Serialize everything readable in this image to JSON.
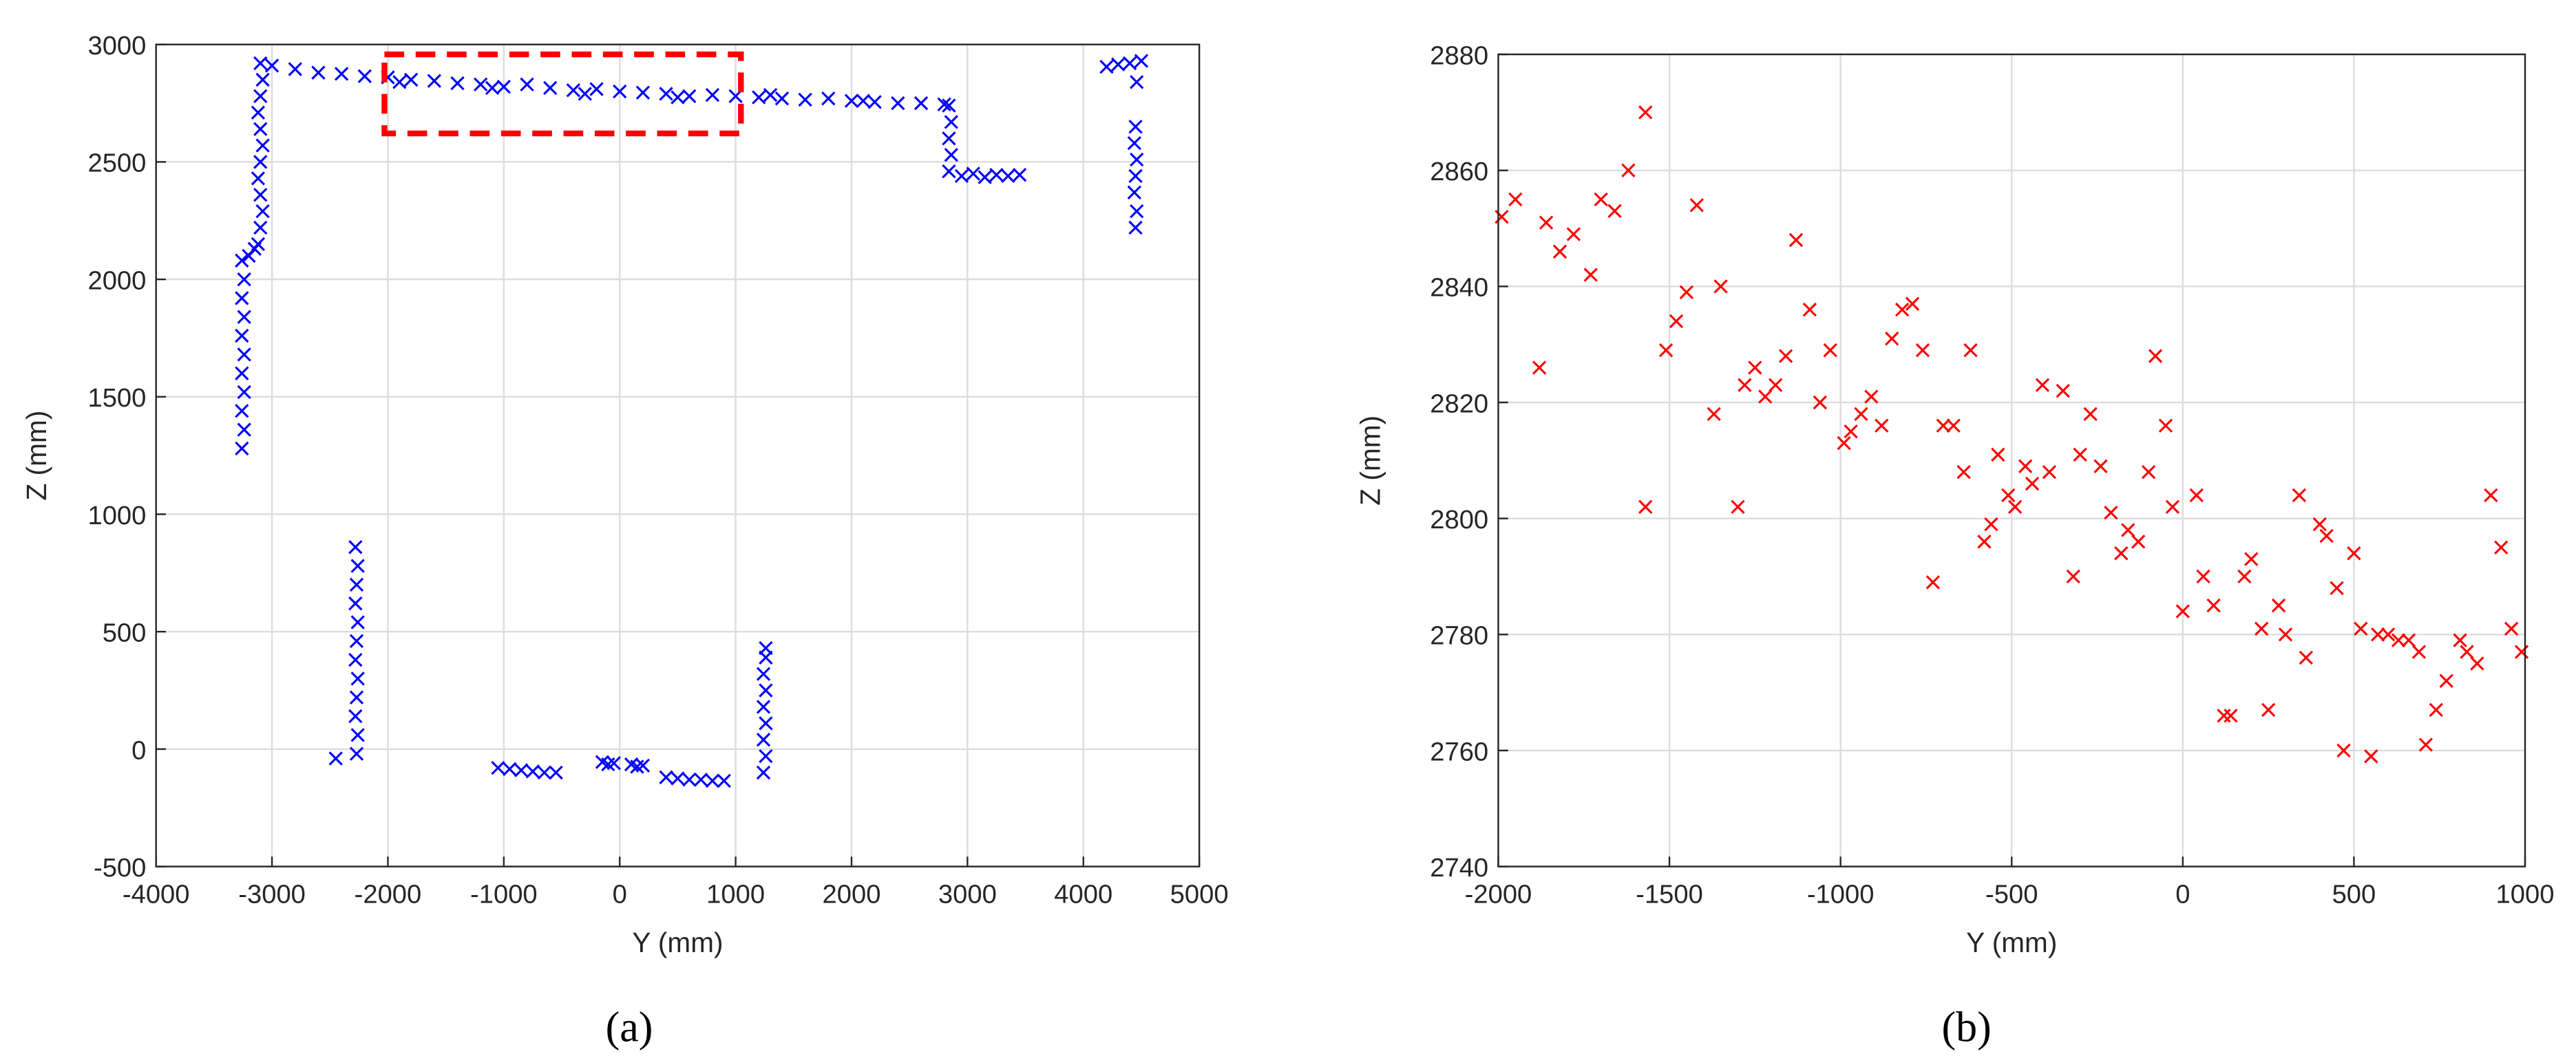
{
  "chart_data": [
    {
      "type": "scatter",
      "caption": "(a)",
      "x_label": "Y (mm)",
      "y_label": "Z (mm)",
      "color": "#0000ff",
      "grid": true,
      "xlim": [
        -4000,
        5000
      ],
      "ylim": [
        -500,
        3000
      ],
      "xticks": [
        -4000,
        -3000,
        -2000,
        -1000,
        0,
        1000,
        2000,
        3000,
        4000,
        5000
      ],
      "yticks": [
        -500,
        0,
        500,
        1000,
        1500,
        2000,
        2500,
        3000
      ],
      "x": [
        -3000,
        -2800,
        -2600,
        -2400,
        -2200,
        -2000,
        -1800,
        -1600,
        -1400,
        -1200,
        -1000,
        -800,
        -600,
        -400,
        -200,
        0,
        200,
        400,
        600,
        800,
        1000,
        1200,
        1400,
        1600,
        1800,
        2000,
        2200,
        2400,
        2600,
        2800,
        -1900,
        -1100,
        -300,
        500,
        1300,
        2100,
        -3120,
        -3100,
        -3080,
        -3100,
        -3120,
        -3100,
        -3080,
        -3100,
        -3120,
        -3100,
        -3080,
        -3100,
        -3260,
        -3240,
        -3260,
        -3240,
        -3260,
        -3240,
        -3260,
        -3240,
        -3260,
        -3240,
        -3260,
        -3200,
        -3150,
        2840,
        2860,
        2840,
        2860,
        2840,
        2950,
        3050,
        3150,
        3250,
        3350,
        3450,
        4200,
        4300,
        4400,
        4500,
        4450,
        4460,
        4440,
        4450,
        4460,
        4440,
        4450,
        4460,
        -2270,
        -2260,
        -2280,
        -2270,
        -2260,
        -2280,
        -2270,
        -2260,
        -2280,
        -2270,
        -2260,
        -2280,
        -2450,
        -1050,
        -950,
        -850,
        -750,
        -650,
        -550,
        -150,
        -100,
        -50,
        100,
        150,
        200,
        400,
        500,
        600,
        700,
        800,
        900,
        1240,
        1260,
        1240,
        1260,
        1240,
        1260,
        1240,
        1260,
        1260
      ],
      "values": [
        2910,
        2895,
        2880,
        2875,
        2865,
        2860,
        2850,
        2845,
        2835,
        2830,
        2820,
        2830,
        2815,
        2805,
        2810,
        2800,
        2795,
        2790,
        2780,
        2785,
        2780,
        2775,
        2770,
        2765,
        2770,
        2760,
        2755,
        2750,
        2750,
        2745,
        2840,
        2815,
        2790,
        2775,
        2785,
        2760,
        2150,
        2220,
        2290,
        2360,
        2430,
        2500,
        2570,
        2640,
        2710,
        2780,
        2850,
        2920,
        1280,
        1360,
        1440,
        1520,
        1600,
        1680,
        1760,
        1840,
        1920,
        2000,
        2080,
        2100,
        2130,
        2460,
        2530,
        2600,
        2670,
        2740,
        2440,
        2450,
        2435,
        2445,
        2440,
        2445,
        2905,
        2915,
        2920,
        2930,
        2220,
        2290,
        2370,
        2440,
        2510,
        2580,
        2650,
        2840,
        -20,
        60,
        140,
        220,
        300,
        380,
        460,
        540,
        620,
        700,
        780,
        860,
        -40,
        -80,
        -85,
        -90,
        -95,
        -100,
        -100,
        -55,
        -65,
        -60,
        -65,
        -75,
        -70,
        -120,
        -125,
        -130,
        -130,
        -135,
        -135,
        -100,
        -30,
        40,
        110,
        180,
        250,
        320,
        390,
        430
      ]
    },
    {
      "type": "scatter",
      "caption": "(b)",
      "x_label": "Y (mm)",
      "y_label": "Z (mm)",
      "color": "#ff0000",
      "grid": true,
      "xlim": [
        -2000,
        1000
      ],
      "ylim": [
        2740,
        2880
      ],
      "xticks": [
        -2000,
        -1500,
        -1000,
        -500,
        0,
        500,
        1000
      ],
      "yticks": [
        2740,
        2760,
        2780,
        2800,
        2820,
        2840,
        2860,
        2880
      ],
      "x": [
        -1990,
        -1950,
        -1880,
        -1860,
        -1820,
        -1780,
        -1730,
        -1700,
        -1660,
        -1620,
        -1570,
        -1570,
        -1510,
        -1480,
        -1450,
        -1420,
        -1370,
        -1350,
        -1300,
        -1280,
        -1250,
        -1220,
        -1190,
        -1160,
        -1130,
        -1090,
        -1060,
        -1030,
        -990,
        -970,
        -940,
        -910,
        -880,
        -850,
        -820,
        -790,
        -760,
        -730,
        -700,
        -670,
        -640,
        -620,
        -580,
        -560,
        -540,
        -510,
        -490,
        -460,
        -440,
        -410,
        -390,
        -350,
        -320,
        -300,
        -270,
        -240,
        -210,
        -180,
        -160,
        -130,
        -100,
        -80,
        -50,
        -30,
        0,
        40,
        60,
        90,
        120,
        140,
        180,
        200,
        230,
        250,
        280,
        300,
        340,
        360,
        400,
        420,
        450,
        470,
        500,
        520,
        550,
        570,
        600,
        630,
        660,
        690,
        710,
        740,
        770,
        810,
        830,
        860,
        900,
        930,
        960,
        990
      ],
      "values": [
        2852,
        2855,
        2826,
        2851,
        2846,
        2849,
        2842,
        2855,
        2853,
        2860,
        2870,
        2802,
        2829,
        2834,
        2839,
        2854,
        2818,
        2840,
        2802,
        2823,
        2826,
        2821,
        2823,
        2828,
        2848,
        2836,
        2820,
        2829,
        2813,
        2815,
        2818,
        2821,
        2816,
        2831,
        2836,
        2837,
        2829,
        2789,
        2816,
        2816,
        2808,
        2829,
        2796,
        2799,
        2811,
        2804,
        2802,
        2809,
        2806,
        2823,
        2808,
        2822,
        2790,
        2811,
        2818,
        2809,
        2801,
        2794,
        2798,
        2796,
        2808,
        2828,
        2816,
        2802,
        2784,
        2804,
        2790,
        2785,
        2766,
        2766,
        2790,
        2793,
        2781,
        2767,
        2785,
        2780,
        2804,
        2776,
        2799,
        2797,
        2788,
        2760,
        2794,
        2781,
        2759,
        2780,
        2780,
        2779,
        2779,
        2777,
        2761,
        2767,
        2772,
        2779,
        2777,
        2775,
        2804,
        2795,
        2781,
        2777
      ]
    }
  ]
}
